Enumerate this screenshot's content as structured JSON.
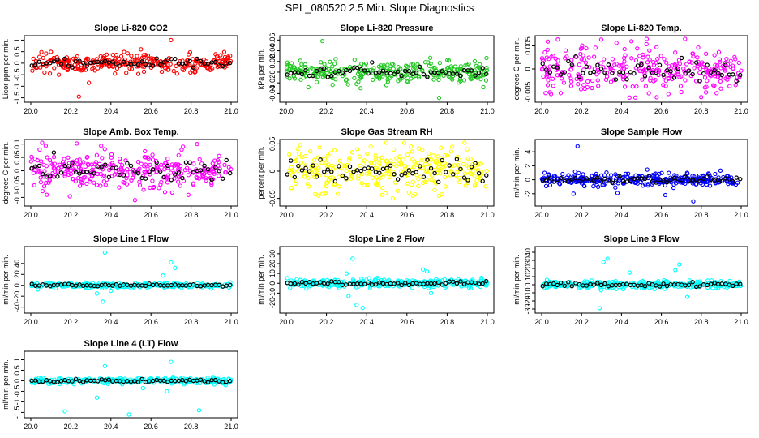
{
  "figure": {
    "title": "SPL_080520  2.5 Min. Slope Diagnostics"
  },
  "chart_data": [
    {
      "id": "p1",
      "type": "scatter",
      "title": "Slope Li-820 CO2",
      "ylabel": "Licor ppm per min.",
      "xlim": [
        20.0,
        21.0
      ],
      "xticks": [
        "20.0",
        "20.2",
        "20.4",
        "20.6",
        "20.8",
        "21.0"
      ],
      "ylim": [
        -1.55,
        1.05
      ],
      "yticks": [
        -1.5,
        -1,
        -0.5,
        0,
        0.5,
        1
      ],
      "color": "#ff0000",
      "spread": 0.18,
      "outliers": [
        [
          20.24,
          -1.45
        ],
        [
          20.29,
          -0.85
        ],
        [
          20.73,
          -0.45
        ],
        [
          20.7,
          1.0
        ],
        [
          20.55,
          0.6
        ],
        [
          20.14,
          -0.5
        ],
        [
          20.42,
          -0.45
        ]
      ]
    },
    {
      "id": "p2",
      "type": "scatter",
      "title": "Slope Li-820 Pressure",
      "ylabel": "kPa per min.",
      "xlim": [
        20.0,
        21.0
      ],
      "xticks": [
        "20.0",
        "20.2",
        "20.4",
        "20.6",
        "20.8",
        "21.0"
      ],
      "ylim": [
        -0.05,
        0.062
      ],
      "yticks": [
        -0.04,
        -0.02,
        0.0,
        0.02,
        0.04,
        0.06
      ],
      "color": "#22c822",
      "spread": 0.009,
      "outliers": [
        [
          20.18,
          0.058
        ],
        [
          20.76,
          -0.048
        ],
        [
          20.98,
          -0.028
        ],
        [
          20.11,
          -0.028
        ],
        [
          20.37,
          -0.03
        ]
      ]
    },
    {
      "id": "p3",
      "type": "scatter",
      "title": "Slope Li-820 Temp.",
      "ylabel": "degrees C per min.",
      "xlim": [
        20.0,
        21.0
      ],
      "xticks": [
        "20.0",
        "20.2",
        "20.4",
        "20.6",
        "20.8",
        "21.0"
      ],
      "ylim": [
        -0.0065,
        0.0065
      ],
      "yticks": [
        -0.005,
        0.0,
        0.005
      ],
      "color": "#ff00ff",
      "spread": 0.0024,
      "outliers": [
        [
          20.44,
          -0.0062
        ],
        [
          20.45,
          0.006
        ],
        [
          20.12,
          0.004
        ],
        [
          20.54,
          0.004
        ],
        [
          20.7,
          -0.005
        ]
      ]
    },
    {
      "id": "p4",
      "type": "scatter",
      "title": "Slope Amb. Box Temp.",
      "ylabel": "degrees C per min.",
      "xlim": [
        20.0,
        21.0
      ],
      "xticks": [
        "20.0",
        "20.2",
        "20.4",
        "20.6",
        "20.8",
        "21.0"
      ],
      "ylim": [
        -0.12,
        0.105
      ],
      "yticks": [
        -0.1,
        -0.05,
        0.0,
        0.05,
        0.1
      ],
      "color": "#ff00ff",
      "spread": 0.035,
      "outliers": [
        [
          20.52,
          -0.11
        ],
        [
          20.08,
          -0.09
        ],
        [
          20.83,
          0.1
        ],
        [
          20.76,
          0.09
        ],
        [
          20.67,
          -0.08
        ]
      ]
    },
    {
      "id": "p5",
      "type": "scatter",
      "title": "Slope Gas Stream RH",
      "ylabel": "percent per min.",
      "xlim": [
        20.0,
        21.0
      ],
      "xticks": [
        "20.0",
        "20.2",
        "20.4",
        "20.6",
        "20.8",
        "21.0"
      ],
      "ylim": [
        -0.058,
        0.052
      ],
      "yticks": [
        -0.05,
        0.0,
        0.05
      ],
      "color": "#ffff00",
      "spread": 0.019,
      "outliers": [
        [
          20.42,
          0.045
        ],
        [
          20.62,
          0.045
        ],
        [
          20.53,
          -0.05
        ],
        [
          20.16,
          -0.045
        ],
        [
          20.9,
          0.04
        ]
      ]
    },
    {
      "id": "p6",
      "type": "scatter",
      "title": "Slope Sample Flow",
      "ylabel": "ml/min per min.",
      "xlim": [
        20.0,
        21.0
      ],
      "xticks": [
        "20.0",
        "20.2",
        "20.4",
        "20.6",
        "20.8",
        "21.0"
      ],
      "ylim": [
        -3.3,
        5.3
      ],
      "yticks": [
        -2,
        0,
        2,
        4
      ],
      "color": "#0000ff",
      "spread": 0.45,
      "outliers": [
        [
          20.18,
          4.8
        ],
        [
          20.76,
          -3.1
        ],
        [
          20.16,
          -2.0
        ],
        [
          20.38,
          -1.9
        ],
        [
          20.62,
          -2.2
        ]
      ]
    },
    {
      "id": "p7",
      "type": "scatter",
      "title": "Slope Line 1 Flow",
      "ylabel": "ml/min per min.",
      "xlim": [
        20.0,
        21.0
      ],
      "xticks": [
        "20.0",
        "20.2",
        "20.4",
        "20.6",
        "20.8",
        "21.0"
      ],
      "ylim": [
        -45,
        65
      ],
      "yticks": [
        -40,
        -20,
        0,
        20,
        40
      ],
      "color": "#00ffff",
      "spread": 2.2,
      "outliers": [
        [
          20.37,
          60
        ],
        [
          20.36,
          -30
        ],
        [
          20.7,
          42
        ],
        [
          20.72,
          32
        ],
        [
          20.4,
          -10
        ],
        [
          20.33,
          -15
        ],
        [
          20.66,
          18
        ]
      ]
    },
    {
      "id": "p8",
      "type": "scatter",
      "title": "Slope Line 2 Flow",
      "ylabel": "ml/min per min.",
      "xlim": [
        20.0,
        21.0
      ],
      "xticks": [
        "20.0",
        "20.2",
        "20.4",
        "20.6",
        "20.8",
        "21.0"
      ],
      "ylim": [
        -27,
        34
      ],
      "yticks": [
        -20,
        -10,
        0,
        10,
        20,
        30
      ],
      "color": "#00ffff",
      "spread": 2.0,
      "outliers": [
        [
          20.33,
          25
        ],
        [
          20.35,
          -22
        ],
        [
          20.3,
          10
        ],
        [
          20.38,
          -25
        ],
        [
          20.7,
          12
        ],
        [
          20.72,
          -10
        ],
        [
          20.68,
          14
        ],
        [
          20.31,
          -13
        ]
      ]
    },
    {
      "id": "p9",
      "type": "scatter",
      "title": "Slope Line 3 Flow",
      "ylabel": "ml/min per min.",
      "xlim": [
        20.0,
        21.0
      ],
      "xticks": [
        "20.0",
        "20.2",
        "20.4",
        "20.6",
        "20.8",
        "21.0"
      ],
      "ylim": [
        -31,
        43
      ],
      "yticks": [
        -30,
        -20,
        -10,
        0,
        10,
        20,
        30,
        40
      ],
      "color": "#00ffff",
      "spread": 2.2,
      "outliers": [
        [
          20.29,
          -29
        ],
        [
          20.31,
          28
        ],
        [
          20.33,
          32
        ],
        [
          20.69,
          25
        ],
        [
          20.73,
          -15
        ],
        [
          20.67,
          18
        ],
        [
          20.44,
          15
        ]
      ]
    },
    {
      "id": "p10",
      "type": "scatter",
      "title": "Slope Line 4 (LT) Flow",
      "ylabel": "ml/min per min.",
      "xlim": [
        20.0,
        21.0
      ],
      "xticks": [
        "20.0",
        "20.2",
        "20.4",
        "20.6",
        "20.8",
        "21.0"
      ],
      "ylim": [
        -1.6,
        1.25
      ],
      "yticks": [
        -1.5,
        -1,
        -0.5,
        0,
        0.5,
        1
      ],
      "color": "#00ffff",
      "spread": 0.07,
      "outliers": [
        [
          20.17,
          -1.45
        ],
        [
          20.49,
          -1.6
        ],
        [
          20.84,
          -1.4
        ],
        [
          20.37,
          0.7
        ],
        [
          20.7,
          0.9
        ],
        [
          20.33,
          -0.8
        ],
        [
          20.68,
          -0.5
        ],
        [
          20.56,
          -0.35
        ]
      ]
    }
  ]
}
